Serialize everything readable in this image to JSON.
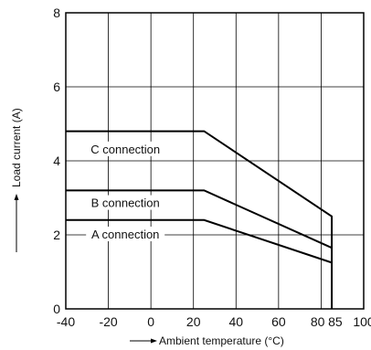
{
  "chart_data": {
    "type": "line",
    "title": "",
    "xlabel": "Ambient temperature (°C)",
    "ylabel": "Load current (A)",
    "xlim": [
      -40,
      100
    ],
    "ylim": [
      0,
      8
    ],
    "x_ticks": [
      -40,
      -20,
      0,
      20,
      40,
      60,
      80,
      85,
      100
    ],
    "x_tick_labels": [
      "-40",
      "-20",
      "0",
      "20",
      "40",
      "60",
      "80",
      "85",
      "100"
    ],
    "y_ticks": [
      0,
      2,
      4,
      6,
      8
    ],
    "y_tick_labels": [
      "0",
      "2",
      "4",
      "6",
      "8"
    ],
    "grid": true,
    "cutoff_x": 85,
    "series": [
      {
        "name": "C connection",
        "x": [
          -40,
          25,
          85,
          85
        ],
        "y": [
          4.8,
          4.8,
          2.5,
          0
        ]
      },
      {
        "name": "B connection",
        "x": [
          -40,
          25,
          85
        ],
        "y": [
          3.2,
          3.2,
          1.65
        ]
      },
      {
        "name": "A connection",
        "x": [
          -40,
          25,
          85
        ],
        "y": [
          2.4,
          2.4,
          1.25
        ]
      }
    ]
  }
}
